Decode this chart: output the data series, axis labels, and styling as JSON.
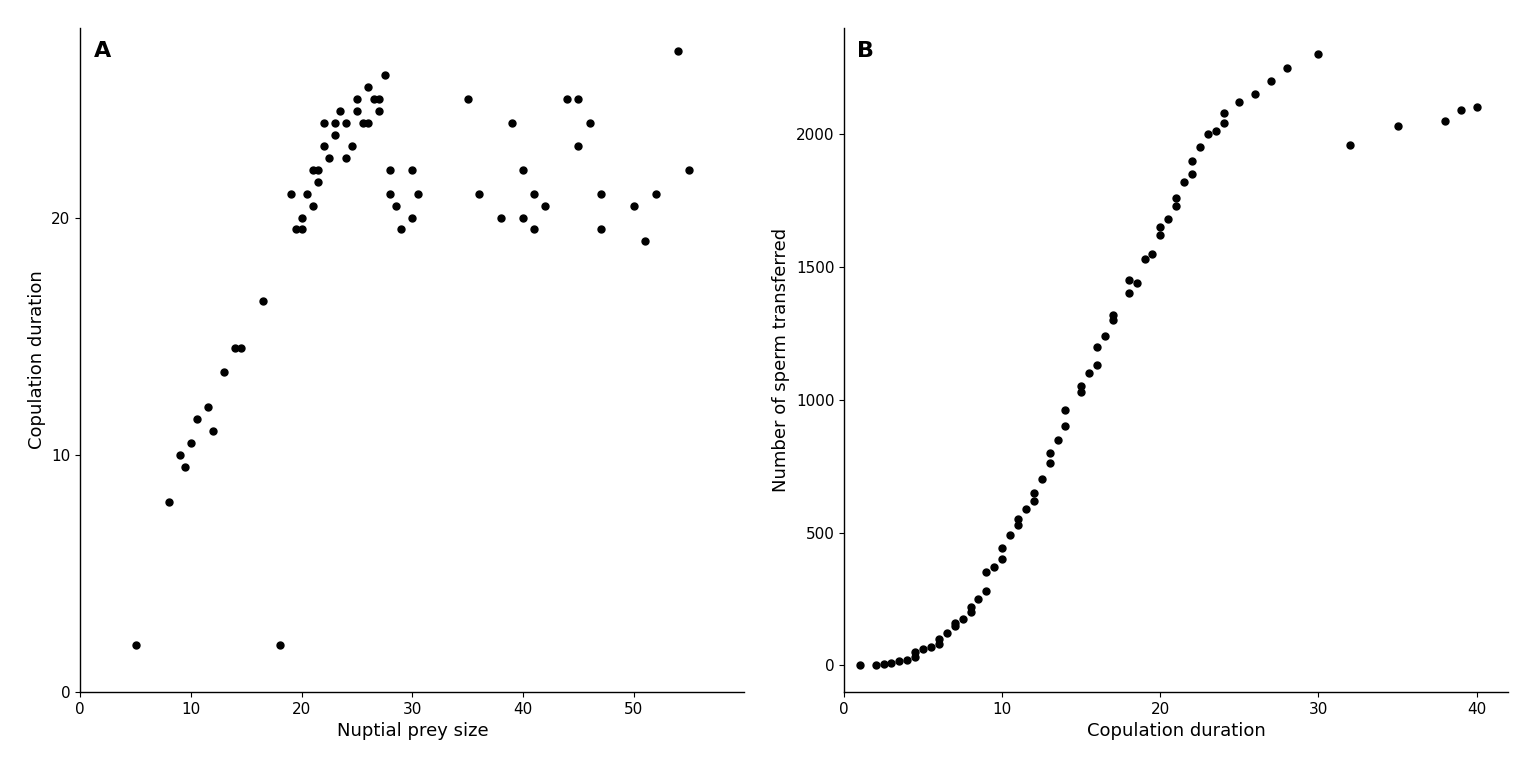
{
  "plot_A": {
    "title": "A",
    "xlabel": "Nuptial prey size",
    "ylabel": "Copulation duration",
    "x": [
      5,
      18,
      8,
      9,
      9.5,
      10,
      10.5,
      11.5,
      12,
      13,
      14,
      14.5,
      16.5,
      19,
      19.5,
      20,
      20,
      20.5,
      21,
      21,
      21.5,
      21.5,
      22,
      22,
      22.5,
      23,
      23,
      23.5,
      24,
      24,
      24.5,
      25,
      25,
      25.5,
      26,
      26,
      26.5,
      27,
      27,
      27.5,
      28,
      28,
      28.5,
      29,
      30,
      30,
      30.5,
      35,
      36,
      38,
      39,
      40,
      40,
      41,
      41,
      42,
      44,
      45,
      45,
      46,
      47,
      47,
      50,
      51,
      52,
      54,
      55
    ],
    "y": [
      2,
      2,
      8,
      10,
      9.5,
      10.5,
      11.5,
      12,
      11,
      13.5,
      14.5,
      14.5,
      16.5,
      21,
      19.5,
      19.5,
      20,
      21,
      22,
      20.5,
      22,
      21.5,
      24,
      23,
      22.5,
      24,
      23.5,
      24.5,
      24,
      22.5,
      23,
      25,
      24.5,
      24,
      25.5,
      24,
      25,
      24.5,
      25,
      26,
      21,
      22,
      20.5,
      19.5,
      20,
      22,
      21,
      25,
      21,
      20,
      24,
      22,
      20,
      21,
      19.5,
      20.5,
      25,
      25,
      23,
      24,
      21,
      19.5,
      20.5,
      19,
      21,
      27,
      22
    ],
    "xlim": [
      0,
      60
    ],
    "ylim": [
      0,
      28
    ],
    "xticks": [
      0,
      10,
      20,
      30,
      40,
      50
    ],
    "yticks": [
      0,
      10,
      20
    ]
  },
  "plot_B": {
    "title": "B",
    "xlabel": "Copulation duration",
    "ylabel": "Number of sperm transferred",
    "x": [
      1,
      2,
      2.5,
      3,
      3.5,
      4,
      4.5,
      4.5,
      5,
      5.5,
      6,
      6,
      6.5,
      7,
      7,
      7.5,
      8,
      8,
      8.5,
      9,
      9,
      9.5,
      10,
      10,
      10.5,
      11,
      11,
      11.5,
      12,
      12,
      12.5,
      13,
      13,
      13.5,
      14,
      14,
      15,
      15,
      15.5,
      16,
      16,
      16.5,
      17,
      17,
      18,
      18,
      18.5,
      19,
      19.5,
      20,
      20,
      20.5,
      21,
      21,
      21.5,
      22,
      22,
      22.5,
      23,
      23.5,
      24,
      24,
      25,
      26,
      27,
      28,
      30,
      32,
      35,
      38,
      39,
      40
    ],
    "y": [
      0,
      0,
      5,
      10,
      15,
      20,
      30,
      50,
      60,
      70,
      80,
      100,
      120,
      150,
      160,
      175,
      200,
      220,
      250,
      280,
      350,
      370,
      400,
      440,
      490,
      530,
      550,
      590,
      620,
      650,
      700,
      760,
      800,
      850,
      900,
      960,
      1030,
      1050,
      1100,
      1130,
      1200,
      1240,
      1300,
      1320,
      1400,
      1450,
      1440,
      1530,
      1550,
      1620,
      1650,
      1680,
      1730,
      1760,
      1820,
      1850,
      1900,
      1950,
      2000,
      2010,
      2040,
      2080,
      2120,
      2150,
      2200,
      2250,
      2300,
      1960,
      2030,
      2050,
      2090,
      2100
    ],
    "xlim": [
      0,
      42
    ],
    "ylim": [
      -100,
      2400
    ],
    "xticks": [
      0,
      10,
      20,
      30,
      40
    ],
    "yticks": [
      0,
      500,
      1000,
      1500,
      2000
    ]
  },
  "dot_color": "#000000",
  "dot_size": 25,
  "background_color": "#ffffff",
  "spine_color": "#333333",
  "label_fontsize": 13,
  "tick_fontsize": 11,
  "title_fontsize": 16
}
